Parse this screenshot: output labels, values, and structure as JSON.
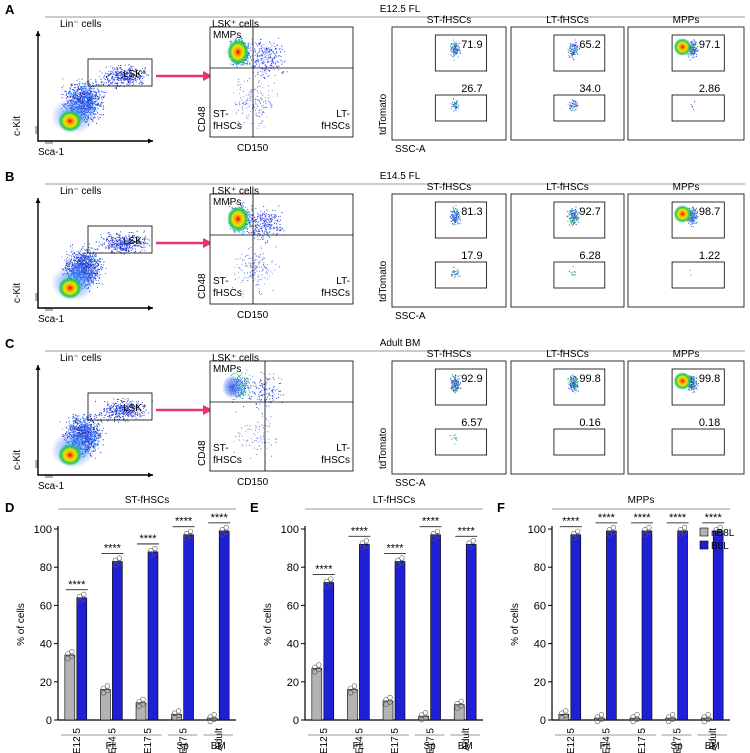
{
  "flow": {
    "rows": [
      {
        "letter": "A",
        "condition": "E12.5 FL",
        "plot1_title": "Lin⁻ cells",
        "gate": "LSK⁺",
        "xlabel1": "Sca-1",
        "ylabel1": "c-Kit",
        "plot2_title": "LSK⁺ cells",
        "q_tl": "MMPs",
        "q_bl": "ST-\nfHSCs",
        "q_br": "LT-\nfHSCs",
        "xlabel2": "CD150",
        "ylabel2": "CD48",
        "ylabel3": "tdTomato",
        "xlabel3": "SSC-A",
        "panels": [
          {
            "title": "ST-fHSCs",
            "upper": "71.9",
            "lower": "26.7"
          },
          {
            "title": "LT-fHSCs",
            "upper": "65.2",
            "lower": "34.0"
          },
          {
            "title": "MPPs",
            "upper": "97.1",
            "lower": "2.86"
          }
        ]
      },
      {
        "letter": "B",
        "condition": "E14.5 FL",
        "plot1_title": "Lin⁻ cells",
        "gate": "LSK⁺",
        "xlabel1": "Sca-1",
        "ylabel1": "c-Kit",
        "plot2_title": "LSK⁺ cells",
        "q_tl": "MMPs",
        "q_bl": "ST-\nfHSCs",
        "q_br": "LT-\nfHSCs",
        "xlabel2": "CD150",
        "ylabel2": "CD48",
        "ylabel3": "tdTomato",
        "xlabel3": "SSC-A",
        "panels": [
          {
            "title": "ST-fHSCs",
            "upper": "81.3",
            "lower": "17.9"
          },
          {
            "title": "LT-fHSCs",
            "upper": "92.7",
            "lower": "6.28"
          },
          {
            "title": "MPPs",
            "upper": "98.7",
            "lower": "1.22"
          }
        ]
      },
      {
        "letter": "C",
        "condition": "Adult BM",
        "plot1_title": "Lin⁻ cells",
        "gate": "LSK⁺",
        "xlabel1": "Sca-1",
        "ylabel1": "c-Kit",
        "plot2_title": "LSK⁺ cells",
        "q_tl": "MMPs",
        "q_bl": "ST-\nfHSCs",
        "q_br": "LT-\nfHSCs",
        "xlabel2": "CD150",
        "ylabel2": "CD48",
        "ylabel3": "tdTomato",
        "xlabel3": "SSC-A",
        "panels": [
          {
            "title": "ST-fHSCs",
            "upper": "92.9",
            "lower": "6.57"
          },
          {
            "title": "LT-fHSCs",
            "upper": "99.8",
            "lower": "0.16"
          },
          {
            "title": "MPPs",
            "upper": "99.8",
            "lower": "0.18"
          }
        ]
      }
    ]
  },
  "chart_data": [
    {
      "type": "bar",
      "letter": "D",
      "title": "ST-fHSCs",
      "ylabel": "% of cells",
      "ylim": [
        0,
        100
      ],
      "yticks": [
        0,
        20,
        40,
        60,
        80,
        100
      ],
      "categories": [
        "E12.5",
        "E14.5",
        "E17.5",
        "E17.5",
        "Adult"
      ],
      "groups": [
        {
          "label": "FL",
          "span": [
            0,
            2
          ]
        },
        {
          "label": "Sp",
          "span": [
            3,
            3
          ]
        },
        {
          "label": "BM",
          "span": [
            4,
            4
          ]
        }
      ],
      "series": [
        {
          "name": "nB8L",
          "values": [
            34,
            16,
            9,
            3,
            1
          ]
        },
        {
          "name": "B8L",
          "values": [
            64,
            83,
            88,
            97,
            99
          ]
        }
      ],
      "significance": [
        "****",
        "****",
        "****",
        "****",
        "****"
      ],
      "legend": "none"
    },
    {
      "type": "bar",
      "letter": "E",
      "title": "LT-fHSCs",
      "ylabel": "% of cells",
      "ylim": [
        0,
        100
      ],
      "yticks": [
        0,
        20,
        40,
        60,
        80,
        100
      ],
      "categories": [
        "E12.5",
        "E14.5",
        "E17.5",
        "E17.5",
        "Adult"
      ],
      "groups": [
        {
          "label": "FL",
          "span": [
            0,
            2
          ]
        },
        {
          "label": "Sp",
          "span": [
            3,
            3
          ]
        },
        {
          "label": "BM",
          "span": [
            4,
            4
          ]
        }
      ],
      "series": [
        {
          "name": "nB8L",
          "values": [
            27,
            16,
            10,
            2,
            8
          ]
        },
        {
          "name": "B8L",
          "values": [
            72,
            92,
            83,
            97,
            92
          ]
        }
      ],
      "significance": [
        "****",
        "****",
        "****",
        "****",
        "****"
      ],
      "legend": "none"
    },
    {
      "type": "bar",
      "letter": "F",
      "title": "MPPs",
      "ylabel": "% of cells",
      "ylim": [
        0,
        100
      ],
      "yticks": [
        0,
        20,
        40,
        60,
        80,
        100
      ],
      "categories": [
        "E12.5",
        "E14.5",
        "E17.5",
        "E17.5",
        "Adult"
      ],
      "groups": [
        {
          "label": "FL",
          "span": [
            0,
            2
          ]
        },
        {
          "label": "Sp",
          "span": [
            3,
            3
          ]
        },
        {
          "label": "BM",
          "span": [
            4,
            4
          ]
        }
      ],
      "series": [
        {
          "name": "nB8L",
          "values": [
            3,
            1,
            1,
            1,
            1
          ]
        },
        {
          "name": "B8L",
          "values": [
            97,
            99,
            99,
            99,
            99
          ]
        }
      ],
      "significance": [
        "****",
        "****",
        "****",
        "****",
        "****"
      ],
      "legend": "top-right"
    }
  ],
  "colors": {
    "nB8L": "#b3b3b3",
    "B8L": "#1f1fd6",
    "arrow": "#e8337a"
  }
}
